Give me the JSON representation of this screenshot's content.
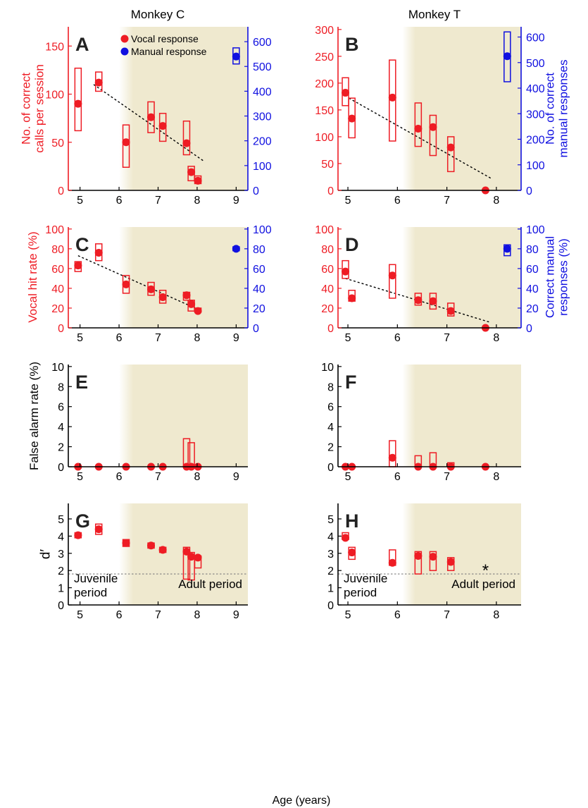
{
  "column_titles": [
    "Monkey C",
    "Monkey T"
  ],
  "xlabel_common": "Age (years)",
  "colors": {
    "vocal": "#ee1c24",
    "manual": "#1010e0",
    "axis": "#000000",
    "adult_shade": "#efe9cf",
    "trend": "#000000",
    "threshold": "#808080"
  },
  "legend": {
    "vocal": "Vocal response",
    "manual": "Manual response"
  },
  "period_labels": {
    "juvenile": [
      "Juvenile",
      "period"
    ],
    "adult": "Adult period"
  },
  "chart_data": [
    {
      "id": "A",
      "type": "scatter",
      "xlim": [
        4.7,
        9.3
      ],
      "xticks": [
        5,
        6,
        7,
        8,
        9
      ],
      "adult_from": 6.0,
      "y_left": {
        "label": [
          "No. of correct",
          "calls per session"
        ],
        "lim": [
          0,
          170
        ],
        "ticks": [
          0,
          50,
          100,
          150
        ]
      },
      "y_right": {
        "label": [],
        "lim": [
          0,
          660
        ],
        "ticks": [
          0,
          100,
          200,
          300,
          400,
          500,
          600
        ]
      },
      "vocal": [
        {
          "x": 4.95,
          "y": 90,
          "lo": 62,
          "hi": 127
        },
        {
          "x": 5.48,
          "y": 112,
          "lo": 103,
          "hi": 123
        },
        {
          "x": 6.18,
          "y": 50,
          "lo": 24,
          "hi": 68
        },
        {
          "x": 6.82,
          "y": 76,
          "lo": 60,
          "hi": 92
        },
        {
          "x": 7.12,
          "y": 67,
          "lo": 51,
          "hi": 80
        },
        {
          "x": 7.73,
          "y": 49,
          "lo": 37,
          "hi": 72
        },
        {
          "x": 7.85,
          "y": 19,
          "lo": 10,
          "hi": 25
        },
        {
          "x": 8.02,
          "y": 10,
          "lo": 7,
          "hi": 15
        }
      ],
      "trend": {
        "x1": 5.35,
        "y1": 110,
        "x2": 8.15,
        "y2": 31
      },
      "manual": [
        {
          "x": 9.0,
          "y": 540,
          "lo": 510,
          "hi": 575
        }
      ],
      "legend": true
    },
    {
      "id": "B",
      "type": "scatter",
      "xlim": [
        4.8,
        8.5
      ],
      "xticks": [
        5,
        6,
        7,
        8
      ],
      "adult_from": 6.1,
      "y_left": {
        "label": [],
        "lim": [
          0,
          305
        ],
        "ticks": [
          0,
          50,
          100,
          150,
          200,
          250,
          300
        ]
      },
      "y_right": {
        "label": [
          "No. of correct",
          "manual responses"
        ],
        "lim": [
          0,
          640
        ],
        "ticks": [
          0,
          100,
          200,
          300,
          400,
          500,
          600
        ]
      },
      "vocal": [
        {
          "x": 4.95,
          "y": 182,
          "lo": 158,
          "hi": 210
        },
        {
          "x": 5.08,
          "y": 134,
          "lo": 98,
          "hi": 172
        },
        {
          "x": 5.9,
          "y": 173,
          "lo": 92,
          "hi": 243
        },
        {
          "x": 6.42,
          "y": 115,
          "lo": 82,
          "hi": 163
        },
        {
          "x": 6.72,
          "y": 118,
          "lo": 65,
          "hi": 140
        },
        {
          "x": 7.08,
          "y": 80,
          "lo": 35,
          "hi": 100
        },
        {
          "x": 7.78,
          "y": 0,
          "lo": 0,
          "hi": 0
        }
      ],
      "trend": {
        "x1": 5.02,
        "y1": 172,
        "x2": 7.9,
        "y2": 22
      },
      "manual": [
        {
          "x": 8.22,
          "y": 525,
          "lo": 425,
          "hi": 620
        }
      ],
      "legend": false
    },
    {
      "id": "C",
      "type": "scatter",
      "xlim": [
        4.7,
        9.3
      ],
      "xticks": [
        5,
        6,
        7,
        8,
        9
      ],
      "adult_from": 6.0,
      "y_left": {
        "label": [
          "Vocal hit rate (%)"
        ],
        "lim": [
          0,
          102
        ],
        "ticks": [
          0,
          20,
          40,
          60,
          80,
          100
        ]
      },
      "y_right": {
        "label": [],
        "lim": [
          0,
          102
        ],
        "ticks": [
          0,
          20,
          40,
          60,
          80,
          100
        ]
      },
      "vocal": [
        {
          "x": 4.95,
          "y": 63,
          "lo": 57,
          "hi": 67
        },
        {
          "x": 5.48,
          "y": 76,
          "lo": 68,
          "hi": 85
        },
        {
          "x": 6.18,
          "y": 44,
          "lo": 35,
          "hi": 53
        },
        {
          "x": 6.82,
          "y": 39,
          "lo": 33,
          "hi": 46
        },
        {
          "x": 7.12,
          "y": 31,
          "lo": 25,
          "hi": 38
        },
        {
          "x": 7.73,
          "y": 33,
          "lo": 28,
          "hi": 36
        },
        {
          "x": 7.85,
          "y": 24,
          "lo": 17,
          "hi": 28
        },
        {
          "x": 8.02,
          "y": 17,
          "lo": 16,
          "hi": 20
        }
      ],
      "trend": {
        "x1": 4.95,
        "y1": 73,
        "x2": 7.95,
        "y2": 20
      },
      "manual": [
        {
          "x": 9.0,
          "y": 80,
          "lo": 78,
          "hi": 82
        }
      ],
      "legend": false
    },
    {
      "id": "D",
      "type": "scatter",
      "xlim": [
        4.8,
        8.5
      ],
      "xticks": [
        5,
        6,
        7,
        8
      ],
      "adult_from": 6.1,
      "y_left": {
        "label": [],
        "lim": [
          0,
          102
        ],
        "ticks": [
          0,
          20,
          40,
          60,
          80,
          100
        ]
      },
      "y_right": {
        "label": [
          "Correct manual",
          "responses (%)"
        ],
        "lim": [
          0,
          102
        ],
        "ticks": [
          0,
          20,
          40,
          60,
          80,
          100
        ]
      },
      "vocal": [
        {
          "x": 4.95,
          "y": 57,
          "lo": 50,
          "hi": 68
        },
        {
          "x": 5.08,
          "y": 30,
          "lo": 27,
          "hi": 38
        },
        {
          "x": 5.9,
          "y": 53,
          "lo": 30,
          "hi": 64
        },
        {
          "x": 6.42,
          "y": 28,
          "lo": 23,
          "hi": 35
        },
        {
          "x": 6.72,
          "y": 27,
          "lo": 19,
          "hi": 35
        },
        {
          "x": 7.08,
          "y": 17,
          "lo": 12,
          "hi": 25
        },
        {
          "x": 7.78,
          "y": 0,
          "lo": 0,
          "hi": 0
        }
      ],
      "trend": {
        "x1": 4.95,
        "y1": 50,
        "x2": 7.85,
        "y2": 6
      },
      "manual": [
        {
          "x": 8.22,
          "y": 80,
          "lo": 73,
          "hi": 84
        }
      ],
      "legend": false
    },
    {
      "id": "E",
      "type": "scatter",
      "xlim": [
        4.7,
        9.3
      ],
      "xticks": [
        5,
        6,
        7,
        8,
        9
      ],
      "adult_from": 6.0,
      "y_left": {
        "label": [
          "False alarm rate (%)"
        ],
        "lim": [
          0,
          10.2
        ],
        "ticks": [
          0,
          2,
          4,
          6,
          8,
          10
        ]
      },
      "vocal": [
        {
          "x": 4.95,
          "y": 0,
          "lo": 0,
          "hi": 0
        },
        {
          "x": 5.48,
          "y": 0,
          "lo": 0,
          "hi": 0
        },
        {
          "x": 6.18,
          "y": 0,
          "lo": 0,
          "hi": 0
        },
        {
          "x": 6.82,
          "y": 0,
          "lo": 0,
          "hi": 0
        },
        {
          "x": 7.12,
          "y": 0,
          "lo": 0,
          "hi": 0
        },
        {
          "x": 7.73,
          "y": 0,
          "lo": 0,
          "hi": 2.8
        },
        {
          "x": 7.85,
          "y": 0,
          "lo": 0,
          "hi": 2.4
        },
        {
          "x": 8.02,
          "y": 0,
          "lo": 0,
          "hi": 0
        }
      ],
      "legend": false
    },
    {
      "id": "F",
      "type": "scatter",
      "xlim": [
        4.8,
        8.5
      ],
      "xticks": [
        5,
        6,
        7,
        8
      ],
      "adult_from": 6.1,
      "y_left": {
        "label": [],
        "lim": [
          0,
          10.2
        ],
        "ticks": [
          0,
          2,
          4,
          6,
          8,
          10
        ]
      },
      "vocal": [
        {
          "x": 4.95,
          "y": 0,
          "lo": 0,
          "hi": 0
        },
        {
          "x": 5.08,
          "y": 0,
          "lo": 0,
          "hi": 0
        },
        {
          "x": 5.9,
          "y": 0.9,
          "lo": 0,
          "hi": 2.6
        },
        {
          "x": 6.42,
          "y": 0,
          "lo": 0,
          "hi": 1.1
        },
        {
          "x": 6.72,
          "y": 0,
          "lo": 0,
          "hi": 1.4
        },
        {
          "x": 7.08,
          "y": 0,
          "lo": 0,
          "hi": 0.4
        },
        {
          "x": 7.78,
          "y": 0,
          "lo": 0,
          "hi": 0
        }
      ],
      "legend": false
    },
    {
      "id": "G",
      "type": "scatter",
      "xlim": [
        4.7,
        9.3
      ],
      "xticks": [
        5,
        6,
        7,
        8,
        9
      ],
      "adult_from": 6.0,
      "y_left": {
        "label": [
          "d′"
        ],
        "lim": [
          0,
          5.9
        ],
        "ticks": [
          0,
          1,
          2,
          3,
          4,
          5
        ]
      },
      "vocal": [
        {
          "x": 4.95,
          "y": 4.05,
          "lo": 3.9,
          "hi": 4.2
        },
        {
          "x": 5.48,
          "y": 4.4,
          "lo": 4.1,
          "hi": 4.7
        },
        {
          "x": 6.18,
          "y": 3.6,
          "lo": 3.4,
          "hi": 3.8
        },
        {
          "x": 6.82,
          "y": 3.45,
          "lo": 3.3,
          "hi": 3.6
        },
        {
          "x": 7.12,
          "y": 3.2,
          "lo": 3.05,
          "hi": 3.35
        },
        {
          "x": 7.73,
          "y": 3.1,
          "lo": 1.5,
          "hi": 3.35
        },
        {
          "x": 7.85,
          "y": 2.8,
          "lo": 1.45,
          "hi": 3.05
        },
        {
          "x": 8.02,
          "y": 2.75,
          "lo": 2.15,
          "hi": 2.85
        }
      ],
      "threshold": 1.8,
      "period_labels": true,
      "legend": false
    },
    {
      "id": "H",
      "type": "scatter",
      "xlim": [
        4.8,
        8.5
      ],
      "xticks": [
        5,
        6,
        7,
        8
      ],
      "adult_from": 6.1,
      "y_left": {
        "label": [],
        "lim": [
          0,
          5.9
        ],
        "ticks": [
          0,
          1,
          2,
          3,
          4,
          5
        ]
      },
      "vocal": [
        {
          "x": 4.95,
          "y": 3.9,
          "lo": 3.8,
          "hi": 4.2
        },
        {
          "x": 5.08,
          "y": 3.05,
          "lo": 2.65,
          "hi": 3.35
        },
        {
          "x": 5.9,
          "y": 2.45,
          "lo": 2.3,
          "hi": 3.2
        },
        {
          "x": 6.42,
          "y": 2.85,
          "lo": 1.8,
          "hi": 3.1
        },
        {
          "x": 6.72,
          "y": 2.8,
          "lo": 2.0,
          "hi": 3.1
        },
        {
          "x": 7.08,
          "y": 2.5,
          "lo": 2.0,
          "hi": 2.75
        }
      ],
      "threshold": 1.8,
      "star": {
        "x": 7.78,
        "y": 2.0,
        "text": "*"
      },
      "period_labels": true,
      "legend": false
    }
  ]
}
